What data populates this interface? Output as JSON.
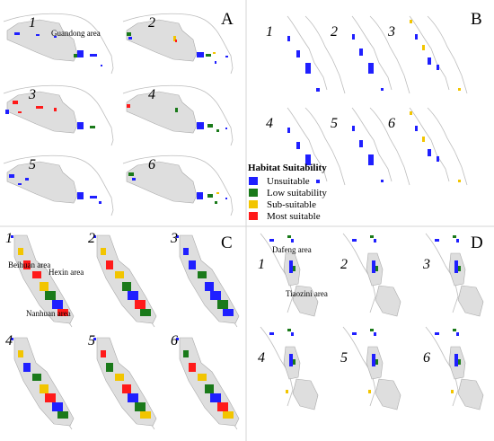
{
  "panels": [
    {
      "letter": "A",
      "maps": [
        "1",
        "2",
        "3",
        "4",
        "5",
        "6"
      ]
    },
    {
      "letter": "B",
      "maps": [
        "1",
        "2",
        "3",
        "4",
        "5",
        "6"
      ]
    },
    {
      "letter": "C",
      "maps": [
        "1",
        "2",
        "3",
        "4",
        "5",
        "6"
      ]
    },
    {
      "letter": "D",
      "maps": [
        "1",
        "2",
        "3",
        "4",
        "5",
        "6"
      ]
    }
  ],
  "area_labels": {
    "guandong": "Guandong area",
    "beihuan": "Beihuan area",
    "hexin": "Hexin area",
    "nanhuan": "Nanhuan area",
    "dafeng": "Dafeng area",
    "tiaozini": "Tiaozini area"
  },
  "legend": {
    "title": "Habitat Suitability",
    "items": [
      {
        "label": "Unsuitable",
        "color": "#1f1fff"
      },
      {
        "label": "Low suitability",
        "color": "#1a7a1a"
      },
      {
        "label": "Sub-suitable",
        "color": "#f2c500"
      },
      {
        "label": "Most suitable",
        "color": "#ff1a1a"
      }
    ]
  }
}
